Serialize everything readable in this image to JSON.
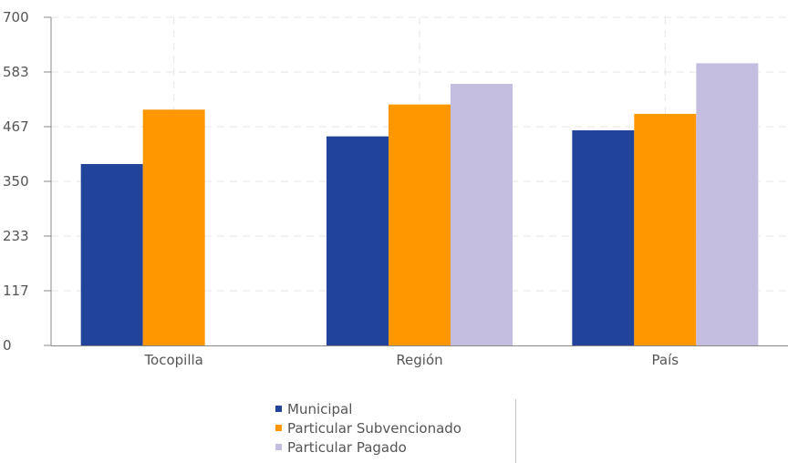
{
  "chart_data": {
    "type": "bar",
    "categories": [
      "Tocopilla",
      "Región",
      "País"
    ],
    "series": [
      {
        "name": "Municipal",
        "color": "#21439a",
        "values": [
          387,
          446,
          459
        ]
      },
      {
        "name": "Particular Subvencionado",
        "color": "#ff9800",
        "values": [
          503,
          514,
          494
        ]
      },
      {
        "name": "Particular Pagado",
        "color": "#c3bddf",
        "values": [
          null,
          558,
          602
        ]
      }
    ],
    "yticks": [
      "0",
      "117",
      "233",
      "350",
      "467",
      "583",
      "700"
    ],
    "ylim": [
      0,
      700
    ],
    "grid": true,
    "legend": "bottom-center"
  }
}
